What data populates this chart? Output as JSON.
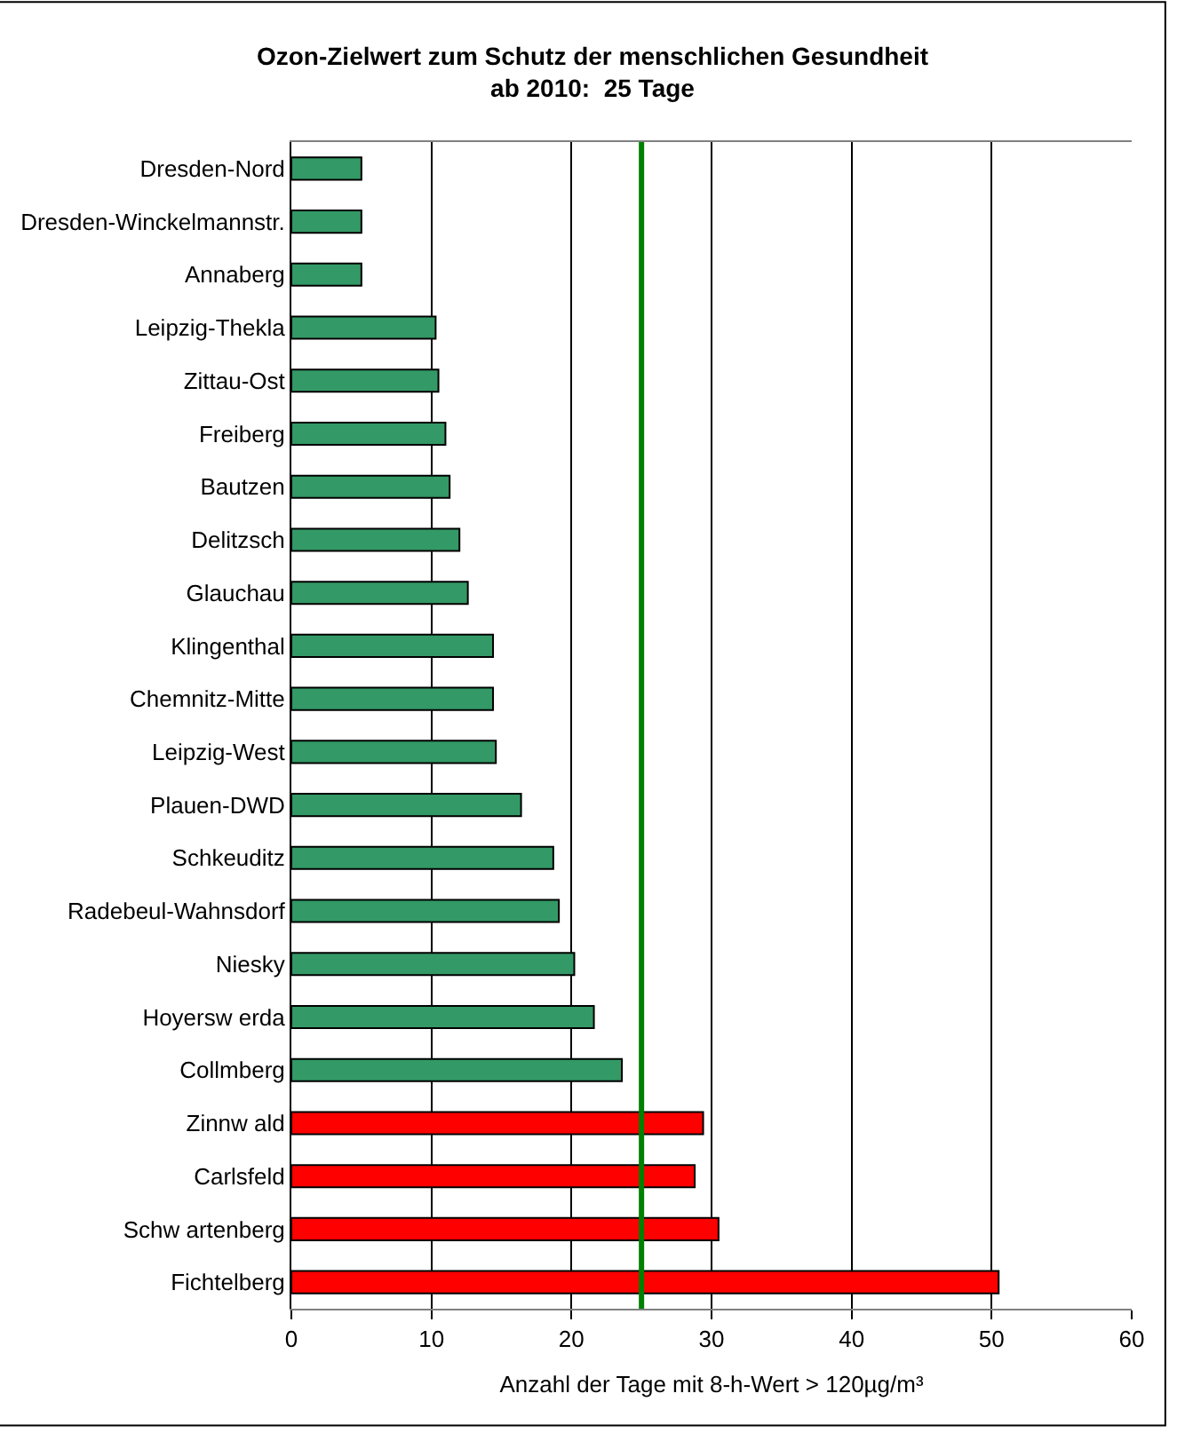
{
  "chart_data": {
    "type": "bar",
    "orientation": "horizontal",
    "title": "Ozon-Zielwert zum Schutz der menschlichen Gesundheit\nab 2010:  25 Tage",
    "xlabel": "Anzahl der Tage mit 8-h-Wert > 120µg/m³",
    "categories": [
      "Dresden-Nord",
      "Dresden-Winckelmannstr.",
      "Annaberg",
      "Leipzig-Thekla",
      "Zittau-Ost",
      "Freiberg",
      "Bautzen",
      "Delitzsch",
      "Glauchau",
      "Klingenthal",
      "Chemnitz-Mitte",
      "Leipzig-West",
      "Plauen-DWD",
      "Schkeuditz",
      "Radebeul-Wahnsdorf",
      "Niesky",
      "Hoyersw erda",
      "Collmberg",
      "Zinnw ald",
      "Carlsfeld",
      "Schw artenberg",
      "Fichtelberg"
    ],
    "values": [
      5.0,
      5.0,
      5.0,
      10.3,
      10.5,
      11.0,
      11.3,
      12.0,
      12.6,
      14.4,
      14.4,
      14.6,
      16.4,
      18.7,
      19.1,
      20.2,
      21.6,
      23.6,
      29.4,
      28.8,
      30.5,
      50.5
    ],
    "colors": [
      "#339966",
      "#339966",
      "#339966",
      "#339966",
      "#339966",
      "#339966",
      "#339966",
      "#339966",
      "#339966",
      "#339966",
      "#339966",
      "#339966",
      "#339966",
      "#339966",
      "#339966",
      "#339966",
      "#339966",
      "#339966",
      "#ff0000",
      "#ff0000",
      "#ff0000",
      "#ff0000"
    ],
    "xlim": [
      0,
      60
    ],
    "xticks": [
      0,
      10,
      20,
      30,
      40,
      50,
      60
    ],
    "grid": "x",
    "ref_lines": [
      {
        "axis": "x",
        "value": 25,
        "color": "#008000",
        "line_style": "solid"
      }
    ]
  }
}
